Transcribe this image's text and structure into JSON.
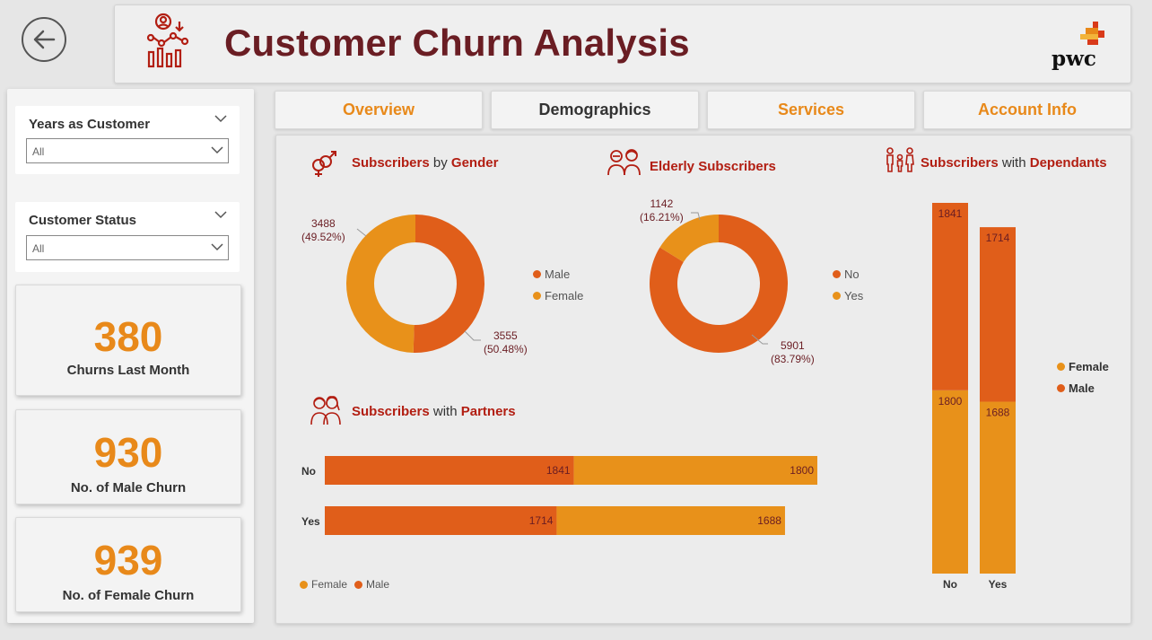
{
  "header": {
    "title": "Customer Churn Analysis",
    "logo_text": "pwc"
  },
  "colors": {
    "male": "#e05e1a",
    "female": "#e8911a",
    "accent": "#e8891a",
    "title": "#6a1d23"
  },
  "tabs": [
    {
      "label": "Overview",
      "active": false
    },
    {
      "label": "Demographics",
      "active": true
    },
    {
      "label": "Services",
      "active": false
    },
    {
      "label": "Account Info",
      "active": false
    }
  ],
  "filters": {
    "years": {
      "title": "Years as Customer",
      "value": "All"
    },
    "status": {
      "title": "Customer Status",
      "value": "All"
    }
  },
  "kpis": [
    {
      "value": "380",
      "label": "Churns Last Month"
    },
    {
      "value": "930",
      "label": "No. of Male Churn"
    },
    {
      "value": "939",
      "label": "No. of Female Churn"
    }
  ],
  "panels": {
    "gender": {
      "title_a": "Subscribers",
      "title_b": " by ",
      "title_c": "Gender",
      "legend": [
        "Male",
        "Female"
      ],
      "label_female": "3488",
      "pct_female": "(49.52%)",
      "label_male": "3555",
      "pct_male": "(50.48%)"
    },
    "elderly": {
      "title": "Elderly Subscribers",
      "legend": [
        "No",
        "Yes"
      ],
      "label_yes": "1142",
      "pct_yes": "(16.21%)",
      "label_no": "5901",
      "pct_no": "(83.79%)"
    },
    "partners": {
      "title_a": "Subscribers",
      "title_b": " with ",
      "title_c": "Partners",
      "legend": [
        "Female",
        "Male"
      ]
    },
    "dependants": {
      "title_a": "Subscribers",
      "title_b": " with ",
      "title_c": "Dependants",
      "legend": [
        "Female",
        "Male"
      ]
    }
  },
  "chart_data": [
    {
      "type": "pie",
      "title": "Subscribers by Gender",
      "categories": [
        "Male",
        "Female"
      ],
      "values": [
        3555,
        3488
      ],
      "percent": [
        50.48,
        49.52
      ]
    },
    {
      "type": "pie",
      "title": "Elderly Subscribers",
      "categories": [
        "No",
        "Yes"
      ],
      "values": [
        5901,
        1142
      ],
      "percent": [
        83.79,
        16.21
      ]
    },
    {
      "type": "bar",
      "title": "Subscribers with Partners",
      "orientation": "horizontal",
      "stacked": true,
      "categories": [
        "No",
        "Yes"
      ],
      "series": [
        {
          "name": "Male",
          "values": [
            1841,
            1714
          ]
        },
        {
          "name": "Female",
          "values": [
            1800,
            1688
          ]
        }
      ]
    },
    {
      "type": "bar",
      "title": "Subscribers with Dependants",
      "orientation": "vertical",
      "stacked": true,
      "categories": [
        "No",
        "Yes"
      ],
      "series": [
        {
          "name": "Female",
          "values": [
            1800,
            1688
          ]
        },
        {
          "name": "Male",
          "values": [
            1841,
            1714
          ]
        }
      ]
    }
  ]
}
